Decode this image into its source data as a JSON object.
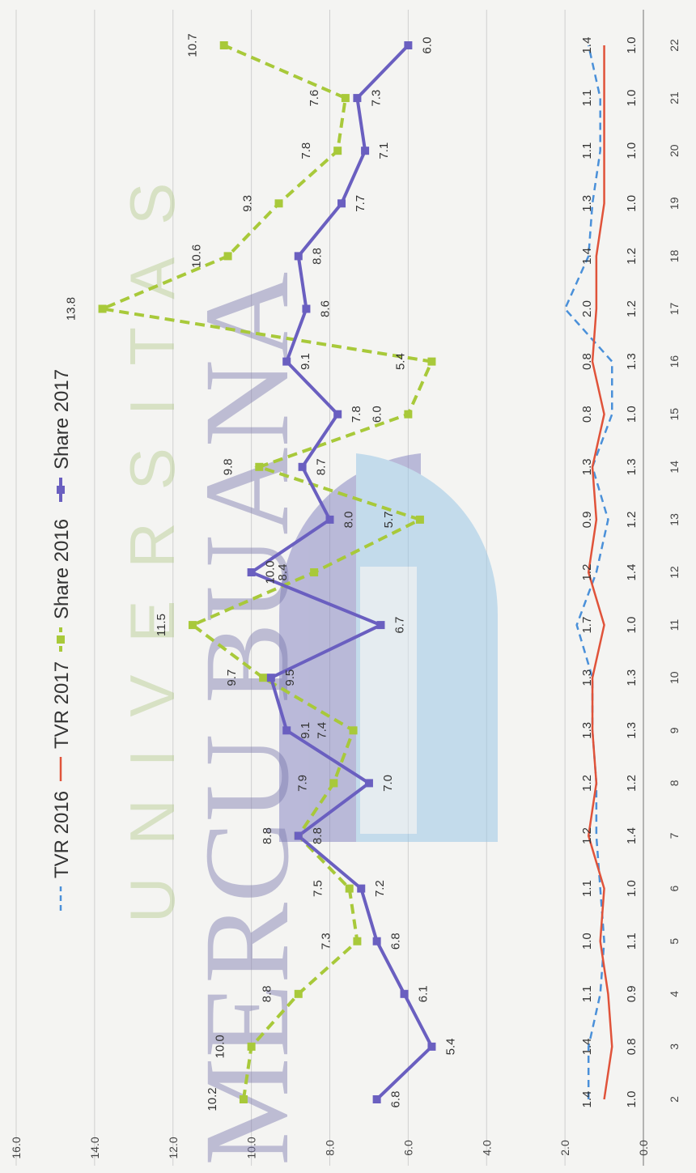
{
  "watermark": {
    "line1": "UNIVERSITAS",
    "line2": "MERCU BUANA"
  },
  "chart_data": {
    "type": "line",
    "orientation": "rotated-90-clockwise",
    "categories": [
      "2",
      "3",
      "4",
      "5",
      "6",
      "7",
      "8",
      "9",
      "10",
      "11",
      "12",
      "13",
      "14",
      "15",
      "16",
      "17",
      "18",
      "19",
      "20",
      "21",
      "22"
    ],
    "ylim": [
      0,
      16
    ],
    "yticks": [
      "0.0",
      "2.0",
      "4.0",
      "6.0",
      "8.0",
      "10.0",
      "12.0",
      "14.0",
      "16.0"
    ],
    "grid": true,
    "legend_position": "top",
    "series": [
      {
        "name": "TVR 2016",
        "color": "#4a90d9",
        "style": "dashed",
        "values": [
          1.4,
          1.4,
          1.1,
          1.0,
          1.1,
          1.2,
          1.2,
          1.3,
          1.3,
          1.7,
          1.2,
          0.9,
          1.3,
          0.8,
          0.8,
          2.0,
          1.4,
          1.3,
          1.1,
          1.1,
          1.4
        ],
        "labels": [
          "1.4",
          "1.4",
          "1.1",
          "1.0",
          "1.1",
          "1.2",
          "1.2",
          "1.3",
          "1.3",
          "1.7",
          "1.2",
          "0.9",
          "1.3",
          "0.8",
          "0.8",
          "2.0",
          "1.4",
          "1.3",
          "1.1",
          "1.1",
          "1.4"
        ]
      },
      {
        "name": "TVR 2017",
        "color": "#e0533a",
        "style": "solid",
        "values": [
          1.0,
          0.8,
          0.9,
          1.1,
          1.0,
          1.4,
          1.2,
          1.3,
          1.3,
          1.0,
          1.4,
          1.2,
          1.3,
          1.0,
          1.3,
          1.2,
          1.2,
          1.0,
          1.0,
          1.0,
          1.0
        ],
        "labels": [
          "1.0",
          "0.8",
          "0.9",
          "1.1",
          "1.0",
          "1.4",
          "1.2",
          "1.3",
          "1.3",
          "1.0",
          "1.4",
          "1.2",
          "1.3",
          "1.0",
          "1.3",
          "1.2",
          "1.2",
          "1.0",
          "1.0",
          "1.0",
          "1.0"
        ]
      },
      {
        "name": "Share 2016",
        "color": "#a8c93a",
        "style": "dashed",
        "values": [
          10.2,
          10.0,
          8.8,
          7.3,
          7.5,
          8.8,
          7.9,
          7.4,
          9.7,
          11.5,
          8.4,
          5.7,
          9.8,
          6.0,
          5.4,
          13.8,
          10.6,
          9.3,
          7.8,
          7.6,
          10.7
        ],
        "labels": [
          "10.2",
          "10.0",
          "8.8",
          "7.3",
          "7.5",
          "8.8",
          "7.9",
          "7.4",
          "9.7",
          "11.5",
          "8.4",
          "5.7",
          "9.8",
          "6.0",
          "5.4",
          "13.8",
          "10.6",
          "9.3",
          "7.8",
          "7.6",
          "10.7"
        ]
      },
      {
        "name": "Share 2017",
        "color": "#6a5fc0",
        "style": "solid",
        "values": [
          6.8,
          5.4,
          6.1,
          6.8,
          7.2,
          8.8,
          7.0,
          9.1,
          9.5,
          6.7,
          10.0,
          8.0,
          8.7,
          7.8,
          9.1,
          8.6,
          8.8,
          7.7,
          7.1,
          7.3,
          6.0
        ],
        "labels": [
          "6.8",
          "5.4",
          "6.1",
          "6.8",
          "7.2",
          "8.8",
          "7.0",
          "9.1",
          "9.5",
          "6.7",
          "10.0",
          "8.0",
          "8.7",
          "7.8",
          "9.1",
          "8.6",
          "8.8",
          "7.7",
          "7.1",
          "7.3",
          "6.0"
        ]
      }
    ]
  }
}
